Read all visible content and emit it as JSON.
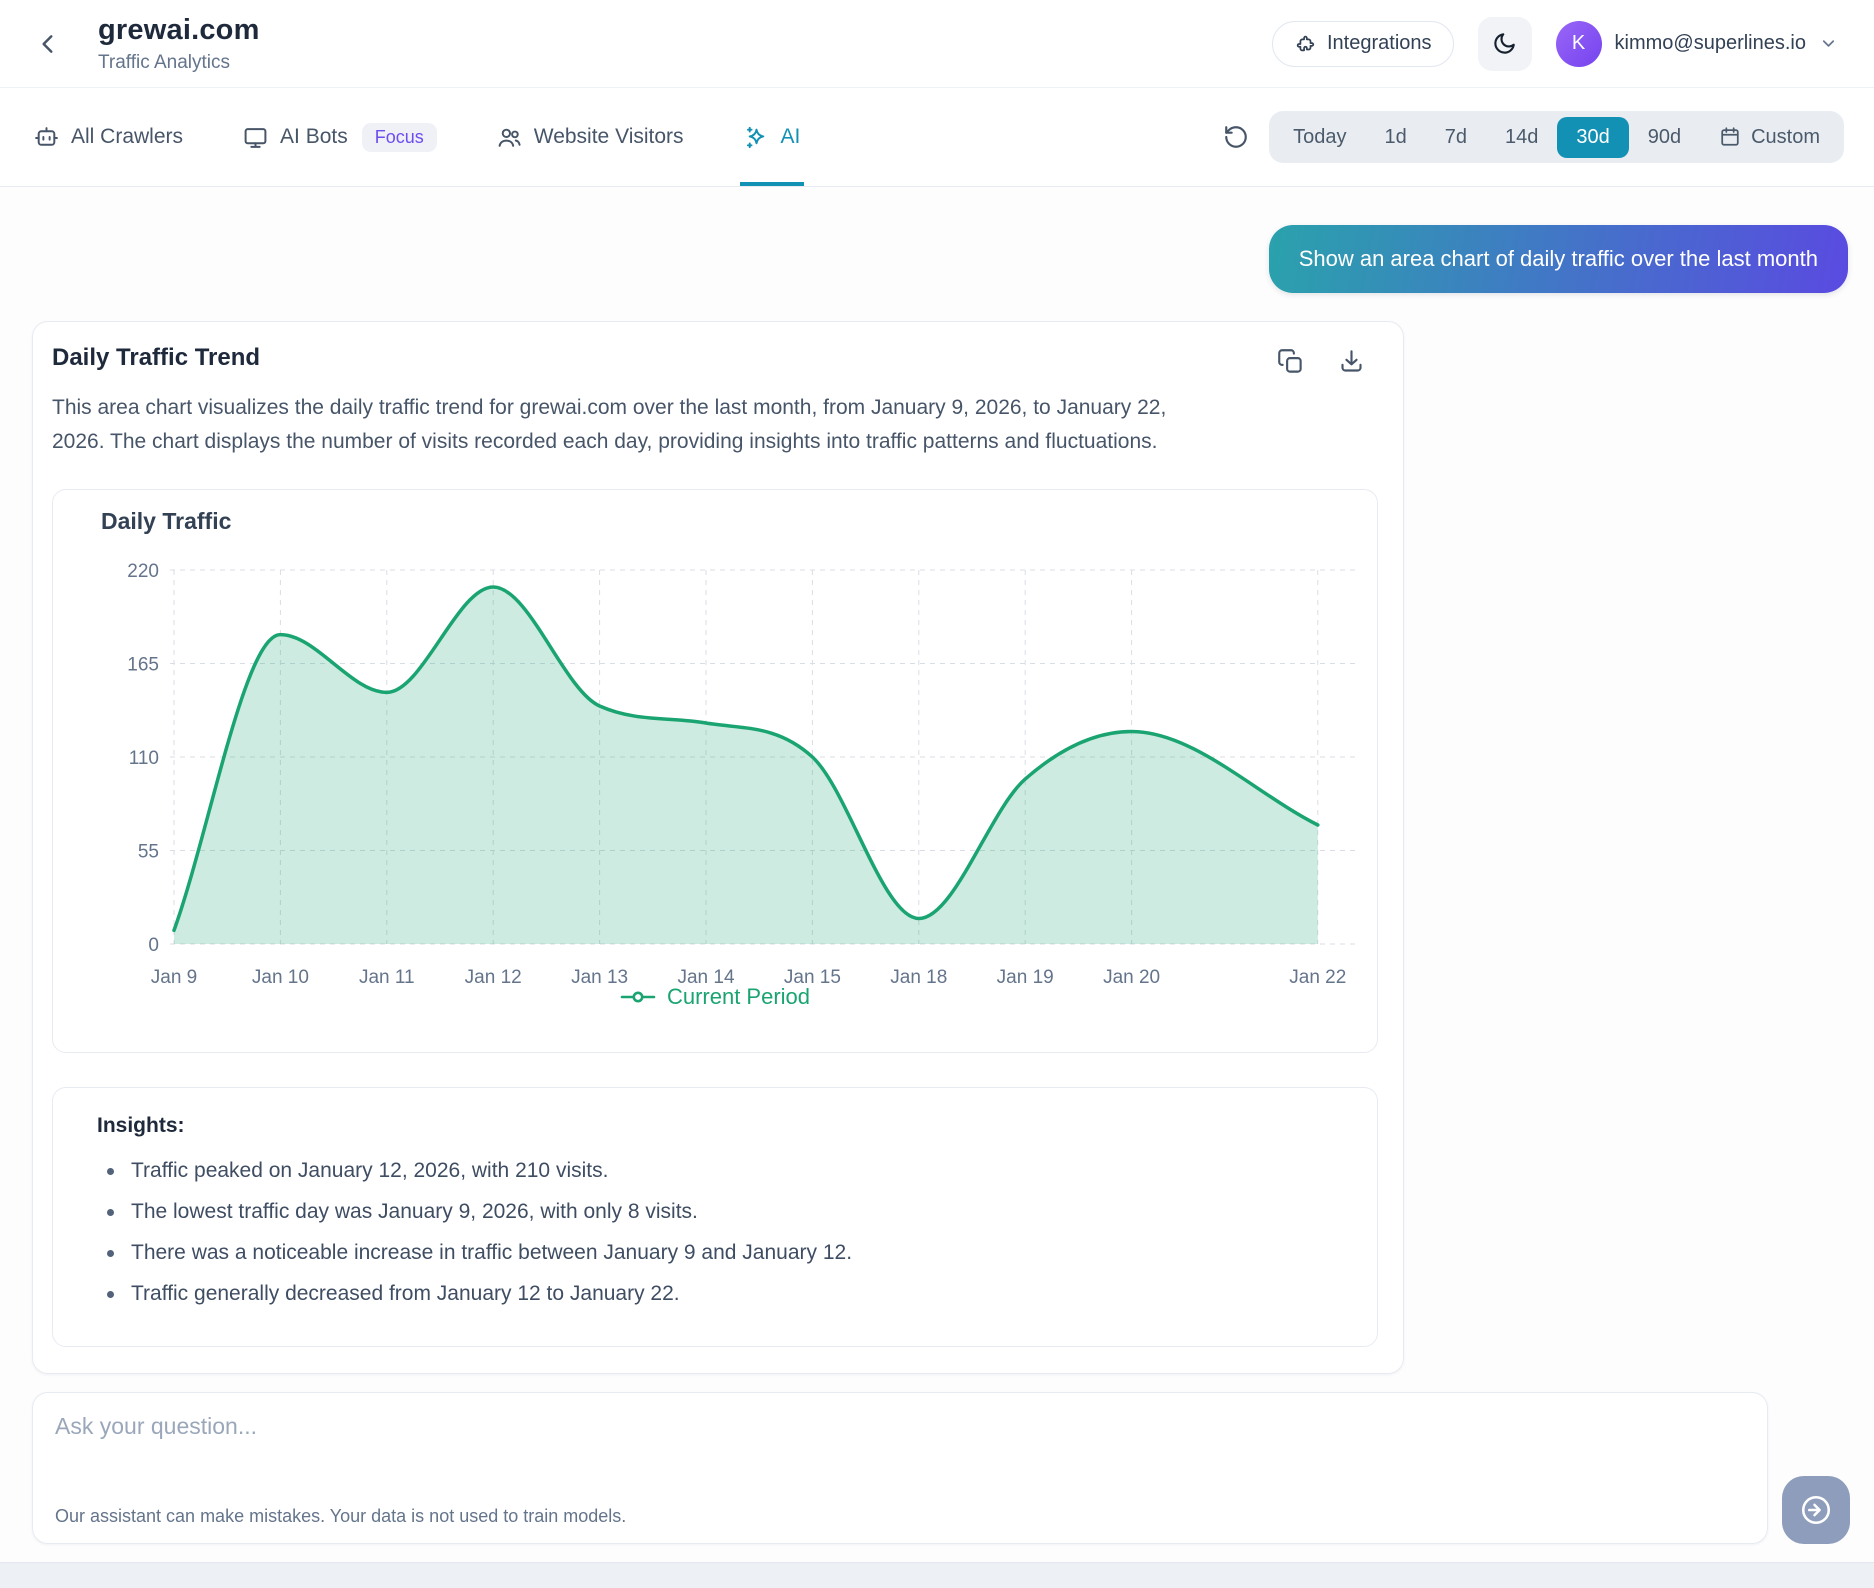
{
  "header": {
    "title": "grewai.com",
    "subtitle": "Traffic Analytics",
    "integrations_label": "Integrations",
    "user_email": "kimmo@superlines.io",
    "avatar_letter": "K"
  },
  "tabs": [
    {
      "label": "All Crawlers",
      "icon": "bot-icon",
      "active": false
    },
    {
      "label": "AI Bots",
      "icon": "monitor-icon",
      "badge": "Focus",
      "active": false
    },
    {
      "label": "Website Visitors",
      "icon": "users-icon",
      "active": false
    },
    {
      "label": "AI",
      "icon": "sparkles-icon",
      "active": true
    }
  ],
  "time_ranges": {
    "options": [
      "Today",
      "1d",
      "7d",
      "14d",
      "30d",
      "90d",
      "Custom"
    ],
    "active": "30d",
    "custom_icon": "calendar-icon"
  },
  "chat": {
    "user_message": "Show an area chart of daily traffic over the last month"
  },
  "card": {
    "title": "Daily Traffic Trend",
    "description": "This area chart visualizes the daily traffic trend for grewai.com over the last month, from January 9, 2026, to January 22, 2026. The chart displays the number of visits recorded each day, providing insights into traffic patterns and fluctuations.",
    "actions": [
      {
        "name": "copy",
        "icon": "copy-icon"
      },
      {
        "name": "download",
        "icon": "download-icon"
      }
    ]
  },
  "chart_data": {
    "type": "area",
    "title": "Daily Traffic",
    "series": [
      {
        "name": "Current Period",
        "points": [
          {
            "label": "Jan 9",
            "x": 0,
            "value": 8
          },
          {
            "label": "Jan 10",
            "x": 1,
            "value": 182
          },
          {
            "label": "Jan 11",
            "x": 2,
            "value": 148
          },
          {
            "label": "Jan 12",
            "x": 3,
            "value": 210
          },
          {
            "label": "Jan 13",
            "x": 4,
            "value": 140
          },
          {
            "label": "Jan 14",
            "x": 5,
            "value": 130
          },
          {
            "label": "Jan 15",
            "x": 6,
            "value": 110
          },
          {
            "label": "Jan 18",
            "x": 7,
            "value": 15
          },
          {
            "label": "Jan 19",
            "x": 8,
            "value": 97
          },
          {
            "label": "Jan 20",
            "x": 9,
            "value": 125
          },
          {
            "label": "Jan 22",
            "x": 10.75,
            "value": 70
          }
        ]
      }
    ],
    "y_ticks": [
      0,
      55,
      110,
      165,
      220
    ],
    "ylim": [
      0,
      220
    ],
    "grid": true,
    "legend": {
      "label": "Current Period",
      "position": "bottom"
    },
    "line_color": "#1aa471",
    "fill_color": "rgba(26,164,113,0.22)"
  },
  "insights": {
    "heading": "Insights:",
    "items": [
      "Traffic peaked on January 12, 2026, with 210 visits.",
      "The lowest traffic day was January 9, 2026, with only 8 visits.",
      "There was a noticeable increase in traffic between January 9 and January 12.",
      "Traffic generally decreased from January 12 to January 22."
    ]
  },
  "composer": {
    "placeholder": "Ask your question...",
    "disclaimer": "Our assistant can make mistakes. Your data is not used to train models."
  },
  "colors": {
    "accent_teal": "#1391b5",
    "chart_line": "#1aa471",
    "bubble_gradient_start": "#2aa2ac",
    "bubble_gradient_end": "#5a4ae1",
    "avatar_purple": "#7443ee",
    "focus_badge_text": "#6d4df0",
    "send_button_bg": "#8e9dbc"
  }
}
